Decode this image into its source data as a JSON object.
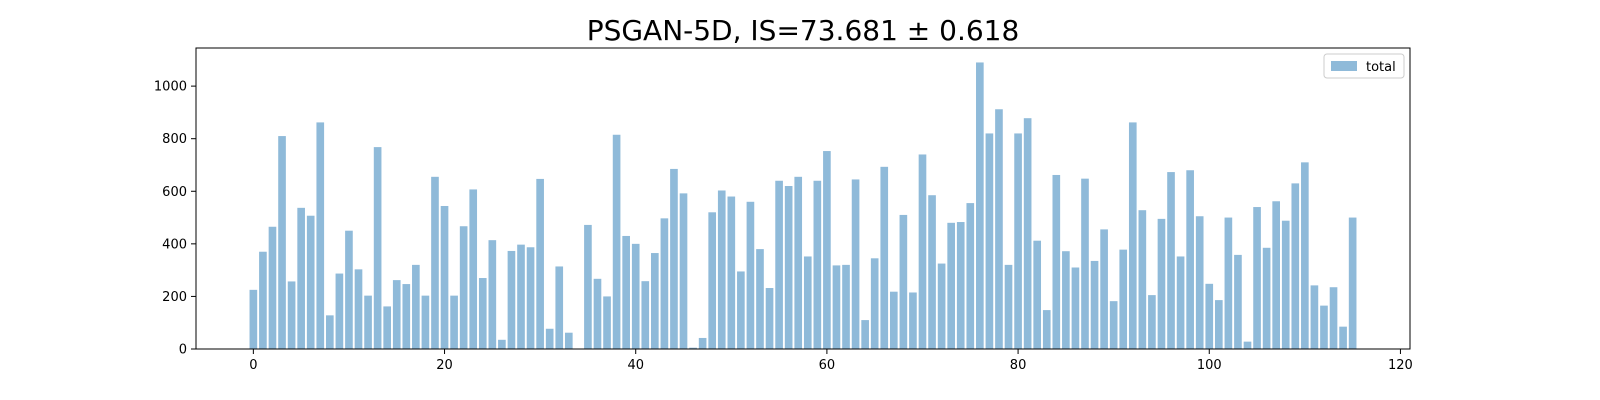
{
  "chart_data": {
    "type": "bar",
    "title": "PSGAN-5D, IS=73.681 ± 0.618",
    "xlabel": "",
    "ylabel": "",
    "xlim": [
      -6,
      121
    ],
    "ylim": [
      0,
      1145
    ],
    "x_ticks": [
      0,
      20,
      40,
      60,
      80,
      100,
      120
    ],
    "y_ticks": [
      0,
      200,
      400,
      600,
      800,
      1000
    ],
    "grid": false,
    "legend_position": "top-right",
    "bar_color": "#8fbad9",
    "series": [
      {
        "name": "total",
        "x": [
          0,
          1,
          2,
          3,
          4,
          5,
          6,
          7,
          8,
          9,
          10,
          11,
          12,
          13,
          14,
          15,
          16,
          17,
          18,
          19,
          20,
          21,
          22,
          23,
          24,
          25,
          26,
          27,
          28,
          29,
          30,
          31,
          32,
          33,
          34,
          35,
          36,
          37,
          38,
          39,
          40,
          41,
          42,
          43,
          44,
          45,
          46,
          47,
          48,
          49,
          50,
          51,
          52,
          53,
          54,
          55,
          56,
          57,
          58,
          59,
          60,
          61,
          62,
          63,
          64,
          65,
          66,
          67,
          68,
          69,
          70,
          71,
          72,
          73,
          74,
          75,
          76,
          77,
          78,
          79,
          80,
          81,
          82,
          83,
          84,
          85,
          86,
          87,
          88,
          89,
          90,
          91,
          92,
          93,
          94,
          95,
          96,
          97,
          98,
          99,
          100,
          101,
          102,
          103,
          104,
          105,
          106,
          107,
          108,
          109,
          110,
          111,
          112,
          113,
          114,
          115
        ],
        "values": [
          225,
          370,
          465,
          810,
          257,
          537,
          507,
          862,
          128,
          287,
          450,
          303,
          203,
          768,
          162,
          262,
          247,
          320,
          203,
          655,
          544,
          203,
          467,
          607,
          270,
          414,
          35,
          373,
          397,
          387,
          647,
          77,
          314,
          62,
          0,
          472,
          267,
          200,
          815,
          430,
          400,
          258,
          365,
          497,
          685,
          592,
          5,
          42,
          520,
          603,
          580,
          295,
          560,
          380,
          232,
          640,
          620,
          655,
          352,
          640,
          753,
          318,
          320,
          645,
          110,
          345,
          693,
          218,
          510,
          215,
          740,
          585,
          325,
          480,
          483,
          555,
          1090,
          820,
          912,
          320,
          820,
          878,
          412,
          148,
          662,
          372,
          310,
          648,
          335,
          455,
          182,
          378,
          862,
          528,
          205,
          495,
          673,
          352,
          680,
          505,
          248,
          186,
          500,
          358,
          28,
          540,
          385,
          562,
          488,
          630,
          710,
          242,
          165,
          235,
          85,
          500
        ]
      }
    ]
  }
}
